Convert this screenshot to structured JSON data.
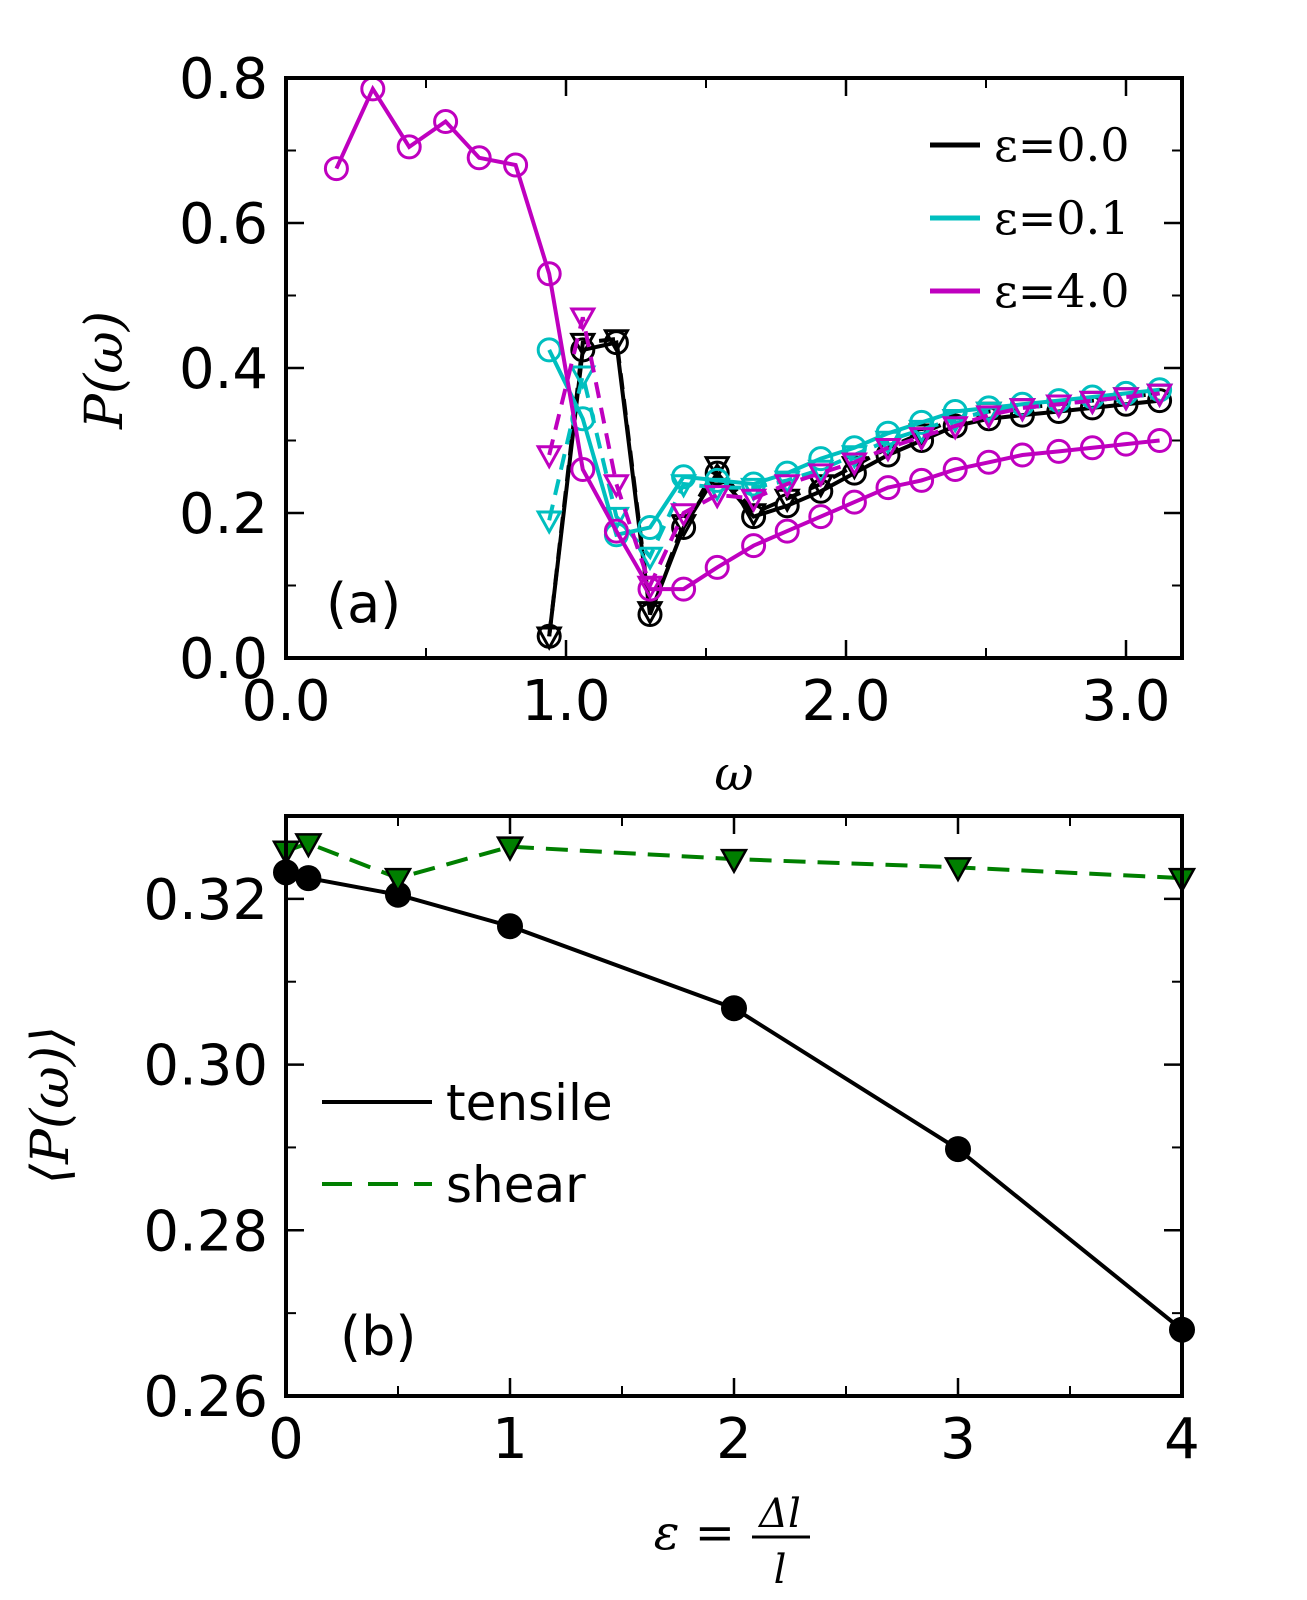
{
  "chart_data": [
    {
      "panel": "a",
      "type": "line",
      "annotation": "(a)",
      "xlabel": "ω",
      "ylabel": "P(ω)",
      "xlim": [
        0.0,
        3.2
      ],
      "ylim": [
        0.0,
        0.8
      ],
      "xticks": [
        0.0,
        1.0,
        2.0,
        3.0
      ],
      "xtick_labels": [
        "0.0",
        "1.0",
        "2.0",
        "3.0"
      ],
      "yticks": [
        0.0,
        0.2,
        0.4,
        0.6,
        0.8
      ],
      "ytick_labels": [
        "0.0",
        "0.2",
        "0.4",
        "0.6",
        "0.8"
      ],
      "legend_position": "top-right",
      "series": [
        {
          "name": "ε=0.0",
          "color": "#000000",
          "circles": {
            "x": [
              0.94,
              1.06,
              1.18,
              1.3,
              1.42,
              1.54,
              1.67,
              1.79,
              1.91,
              2.03,
              2.15,
              2.27,
              2.39,
              2.51,
              2.63,
              2.76,
              2.88,
              3.0,
              3.12
            ],
            "y": [
              0.03,
              0.425,
              0.435,
              0.06,
              0.18,
              0.255,
              0.195,
              0.21,
              0.23,
              0.255,
              0.28,
              0.3,
              0.32,
              0.33,
              0.335,
              0.34,
              0.345,
              0.35,
              0.355
            ]
          },
          "triangles": {
            "x": [
              0.94,
              1.06,
              1.18,
              1.3,
              1.42,
              1.54,
              1.67,
              1.79,
              1.91,
              2.03,
              2.15,
              2.27,
              2.39,
              2.51,
              2.63,
              2.76,
              2.88,
              3.0,
              3.12
            ],
            "y": [
              0.03,
              0.435,
              0.44,
              0.065,
              0.185,
              0.265,
              0.2,
              0.22,
              0.24,
              0.265,
              0.29,
              0.31,
              0.33,
              0.34,
              0.345,
              0.35,
              0.355,
              0.36,
              0.365
            ]
          }
        },
        {
          "name": "ε=0.1",
          "color": "#00bfbf",
          "circles": {
            "x": [
              0.94,
              1.06,
              1.18,
              1.3,
              1.42,
              1.54,
              1.67,
              1.79,
              1.91,
              2.03,
              2.15,
              2.27,
              2.39,
              2.51,
              2.63,
              2.76,
              2.88,
              3.0,
              3.12
            ],
            "y": [
              0.425,
              0.33,
              0.17,
              0.18,
              0.25,
              0.245,
              0.24,
              0.255,
              0.275,
              0.29,
              0.31,
              0.325,
              0.34,
              0.345,
              0.35,
              0.355,
              0.36,
              0.365,
              0.37
            ]
          },
          "triangles": {
            "x": [
              0.94,
              1.06,
              1.18,
              1.3,
              1.42,
              1.54,
              1.67,
              1.79,
              1.91,
              2.03,
              2.15,
              2.27,
              2.39,
              2.51,
              2.63,
              2.76,
              2.88,
              3.0,
              3.12
            ],
            "y": [
              0.19,
              0.39,
              0.195,
              0.14,
              0.24,
              0.235,
              0.235,
              0.245,
              0.26,
              0.28,
              0.3,
              0.315,
              0.33,
              0.34,
              0.345,
              0.35,
              0.355,
              0.36,
              0.365
            ]
          }
        },
        {
          "name": "ε=4.0",
          "color": "#bf00bf",
          "circles": {
            "x": [
              0.18,
              0.31,
              0.44,
              0.57,
              0.69,
              0.82,
              0.94,
              1.06,
              1.18,
              1.3,
              1.42,
              1.54,
              1.67,
              1.79,
              1.91,
              2.03,
              2.15,
              2.27,
              2.39,
              2.51,
              2.63,
              2.76,
              2.88,
              3.0,
              3.12
            ],
            "y": [
              0.675,
              0.785,
              0.705,
              0.74,
              0.69,
              0.68,
              0.53,
              0.26,
              0.175,
              0.095,
              0.095,
              0.125,
              0.155,
              0.175,
              0.195,
              0.215,
              0.235,
              0.245,
              0.26,
              0.27,
              0.28,
              0.285,
              0.29,
              0.295,
              0.3
            ]
          },
          "triangles": {
            "x": [
              0.94,
              1.06,
              1.18,
              1.3,
              1.42,
              1.54,
              1.67,
              1.79,
              1.91,
              2.03,
              2.15,
              2.27,
              2.39,
              2.51,
              2.63,
              2.76,
              2.88,
              3.0,
              3.12
            ],
            "y": [
              0.28,
              0.47,
              0.24,
              0.1,
              0.2,
              0.225,
              0.22,
              0.24,
              0.255,
              0.27,
              0.29,
              0.305,
              0.32,
              0.335,
              0.345,
              0.35,
              0.355,
              0.36,
              0.365
            ]
          }
        }
      ]
    },
    {
      "panel": "b",
      "type": "line",
      "annotation": "(b)",
      "xlabel": "ε = Δl / l",
      "xlabel_parts": {
        "lhs": "ε =",
        "numerator": "Δl",
        "denominator": "l"
      },
      "ylabel": "⟨P(ω)⟩",
      "xlim": [
        0,
        4
      ],
      "ylim": [
        0.26,
        0.33
      ],
      "xticks": [
        0,
        1,
        2,
        3,
        4
      ],
      "xtick_labels": [
        "0",
        "1",
        "2",
        "3",
        "4"
      ],
      "yticks": [
        0.26,
        0.28,
        0.3,
        0.32
      ],
      "ytick_labels": [
        "0.26",
        "0.28",
        "0.30",
        "0.32"
      ],
      "legend_position": "center-left",
      "series": [
        {
          "name": "tensile",
          "color": "#000000",
          "linestyle": "solid",
          "marker": "circle",
          "x": [
            0.0,
            0.1,
            0.5,
            1.0,
            2.0,
            3.0,
            4.0
          ],
          "y": [
            0.3232,
            0.3225,
            0.3205,
            0.3167,
            0.3068,
            0.2898,
            0.268
          ]
        },
        {
          "name": "shear",
          "color": "#007f00",
          "linestyle": "dashed",
          "marker": "triangle-down",
          "x": [
            0.0,
            0.1,
            0.5,
            1.0,
            2.0,
            3.0,
            4.0
          ],
          "y": [
            0.3258,
            0.3267,
            0.3225,
            0.3263,
            0.3248,
            0.3238,
            0.3225
          ]
        }
      ]
    }
  ]
}
